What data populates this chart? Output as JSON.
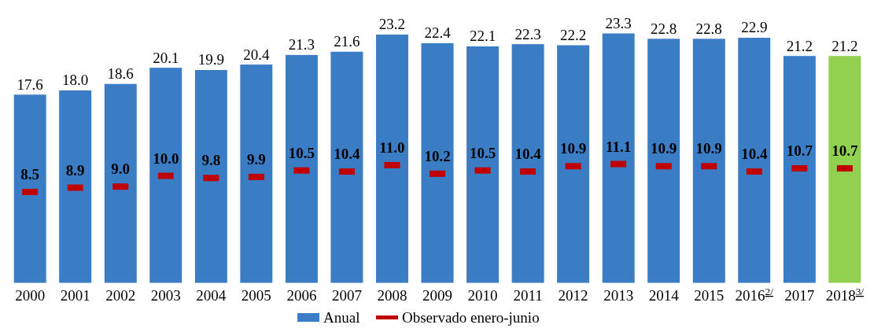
{
  "chart_data": {
    "type": "bar",
    "categories": [
      "2000",
      "2001",
      "2002",
      "2003",
      "2004",
      "2005",
      "2006",
      "2007",
      "2008",
      "2009",
      "2010",
      "2011",
      "2012",
      "2013",
      "2014",
      "2015",
      "2016$^{2/}$",
      "2017",
      "2018$^{3/}$"
    ],
    "series": [
      {
        "name": "Anual",
        "color": "#3a7dc5",
        "colors": [
          "#3a7dc5",
          "#3a7dc5",
          "#3a7dc5",
          "#3a7dc5",
          "#3a7dc5",
          "#3a7dc5",
          "#3a7dc5",
          "#3a7dc5",
          "#3a7dc5",
          "#3a7dc5",
          "#3a7dc5",
          "#3a7dc5",
          "#3a7dc5",
          "#3a7dc5",
          "#3a7dc5",
          "#3a7dc5",
          "#3a7dc5",
          "#3a7dc5",
          "#92d050"
        ],
        "values": [
          17.6,
          18.0,
          18.6,
          20.1,
          19.9,
          20.4,
          21.3,
          21.6,
          23.2,
          22.4,
          22.1,
          22.3,
          22.2,
          23.3,
          22.8,
          22.8,
          22.9,
          21.2,
          21.2
        ],
        "value_labels": [
          "17.6",
          "18.0",
          "18.6",
          "20.1",
          "19.9",
          "20.4",
          "21.3",
          "21.6",
          "23.2",
          "22.4",
          "22.1",
          "22.3",
          "22.2",
          "23.3",
          "22.8",
          "22.8",
          "22.9",
          "21.2",
          "21.2"
        ]
      },
      {
        "name": "Observado enero-junio",
        "type": "scatter",
        "color": "#c00000",
        "values": [
          8.5,
          8.9,
          9.0,
          10.0,
          9.8,
          9.9,
          10.5,
          10.4,
          11.0,
          10.2,
          10.5,
          10.4,
          10.9,
          11.1,
          10.9,
          10.9,
          10.4,
          10.7,
          10.7
        ],
        "value_labels": [
          "8.5",
          "8.9",
          "9.0",
          "10.0",
          "9.8",
          "9.9",
          "10.5",
          "10.4",
          "11.0",
          "10.2",
          "10.5",
          "10.4",
          "10.9",
          "11.1",
          "10.9",
          "10.9",
          "10.4",
          "10.7",
          "10.7"
        ]
      }
    ],
    "legend": "bottom"
  }
}
